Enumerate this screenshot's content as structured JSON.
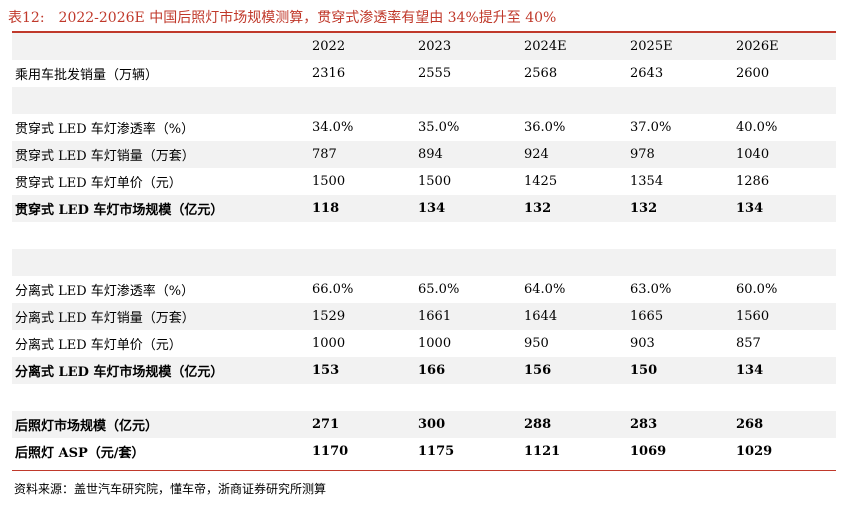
{
  "title": "表12:　2022-2026E 中国后照灯市场规模测算，贯穿式渗透率有望由 34%提升至 40%",
  "columns": [
    "2022",
    "2023",
    "2024E",
    "2025E",
    "2026E"
  ],
  "rows": [
    {
      "label": "乘用车批发销量（万辆）",
      "values": [
        "2316",
        "2555",
        "2568",
        "2643",
        "2600"
      ],
      "bold": false
    },
    {
      "label": "",
      "values": [
        "",
        "",
        "",
        "",
        ""
      ],
      "bold": false
    },
    {
      "label": "贯穿式 LED 车灯渗透率（%）",
      "values": [
        "34.0%",
        "35.0%",
        "36.0%",
        "37.0%",
        "40.0%"
      ],
      "bold": false
    },
    {
      "label": "贯穿式 LED 车灯销量（万套）",
      "values": [
        "787",
        "894",
        "924",
        "978",
        "1040"
      ],
      "bold": false
    },
    {
      "label": "贯穿式 LED 车灯单价（元）",
      "values": [
        "1500",
        "1500",
        "1425",
        "1354",
        "1286"
      ],
      "bold": false
    },
    {
      "label": "贯穿式 LED 车灯市场规模（亿元）",
      "values": [
        "118",
        "134",
        "132",
        "132",
        "134"
      ],
      "bold": true
    },
    {
      "label": "",
      "values": [
        "",
        "",
        "",
        "",
        ""
      ],
      "bold": false
    },
    {
      "label": "",
      "values": [
        "",
        "",
        "",
        "",
        ""
      ],
      "bold": false
    },
    {
      "label": "分离式 LED 车灯渗透率（%）",
      "values": [
        "66.0%",
        "65.0%",
        "64.0%",
        "63.0%",
        "60.0%"
      ],
      "bold": false
    },
    {
      "label": "分离式 LED 车灯销量（万套）",
      "values": [
        "1529",
        "1661",
        "1644",
        "1665",
        "1560"
      ],
      "bold": false
    },
    {
      "label": "分离式 LED 车灯单价（元）",
      "values": [
        "1000",
        "1000",
        "950",
        "903",
        "857"
      ],
      "bold": false
    },
    {
      "label": "分离式 LED 车灯市场规模（亿元）",
      "values": [
        "153",
        "166",
        "156",
        "150",
        "134"
      ],
      "bold": true
    },
    {
      "label": "",
      "values": [
        "",
        "",
        "",
        "",
        ""
      ],
      "bold": false
    },
    {
      "label": "后照灯市场规模（亿元）",
      "values": [
        "271",
        "300",
        "288",
        "283",
        "268"
      ],
      "bold": true
    },
    {
      "label": "后照灯 ASP（元/套）",
      "values": [
        "1170",
        "1175",
        "1121",
        "1069",
        "1029"
      ],
      "bold": true
    }
  ],
  "source": "资料来源：盖世汽车研究院，懂车帝，浙商证券研究所测算",
  "colors": {
    "accent": "#c0392b",
    "shade": "#f2f2f2"
  }
}
